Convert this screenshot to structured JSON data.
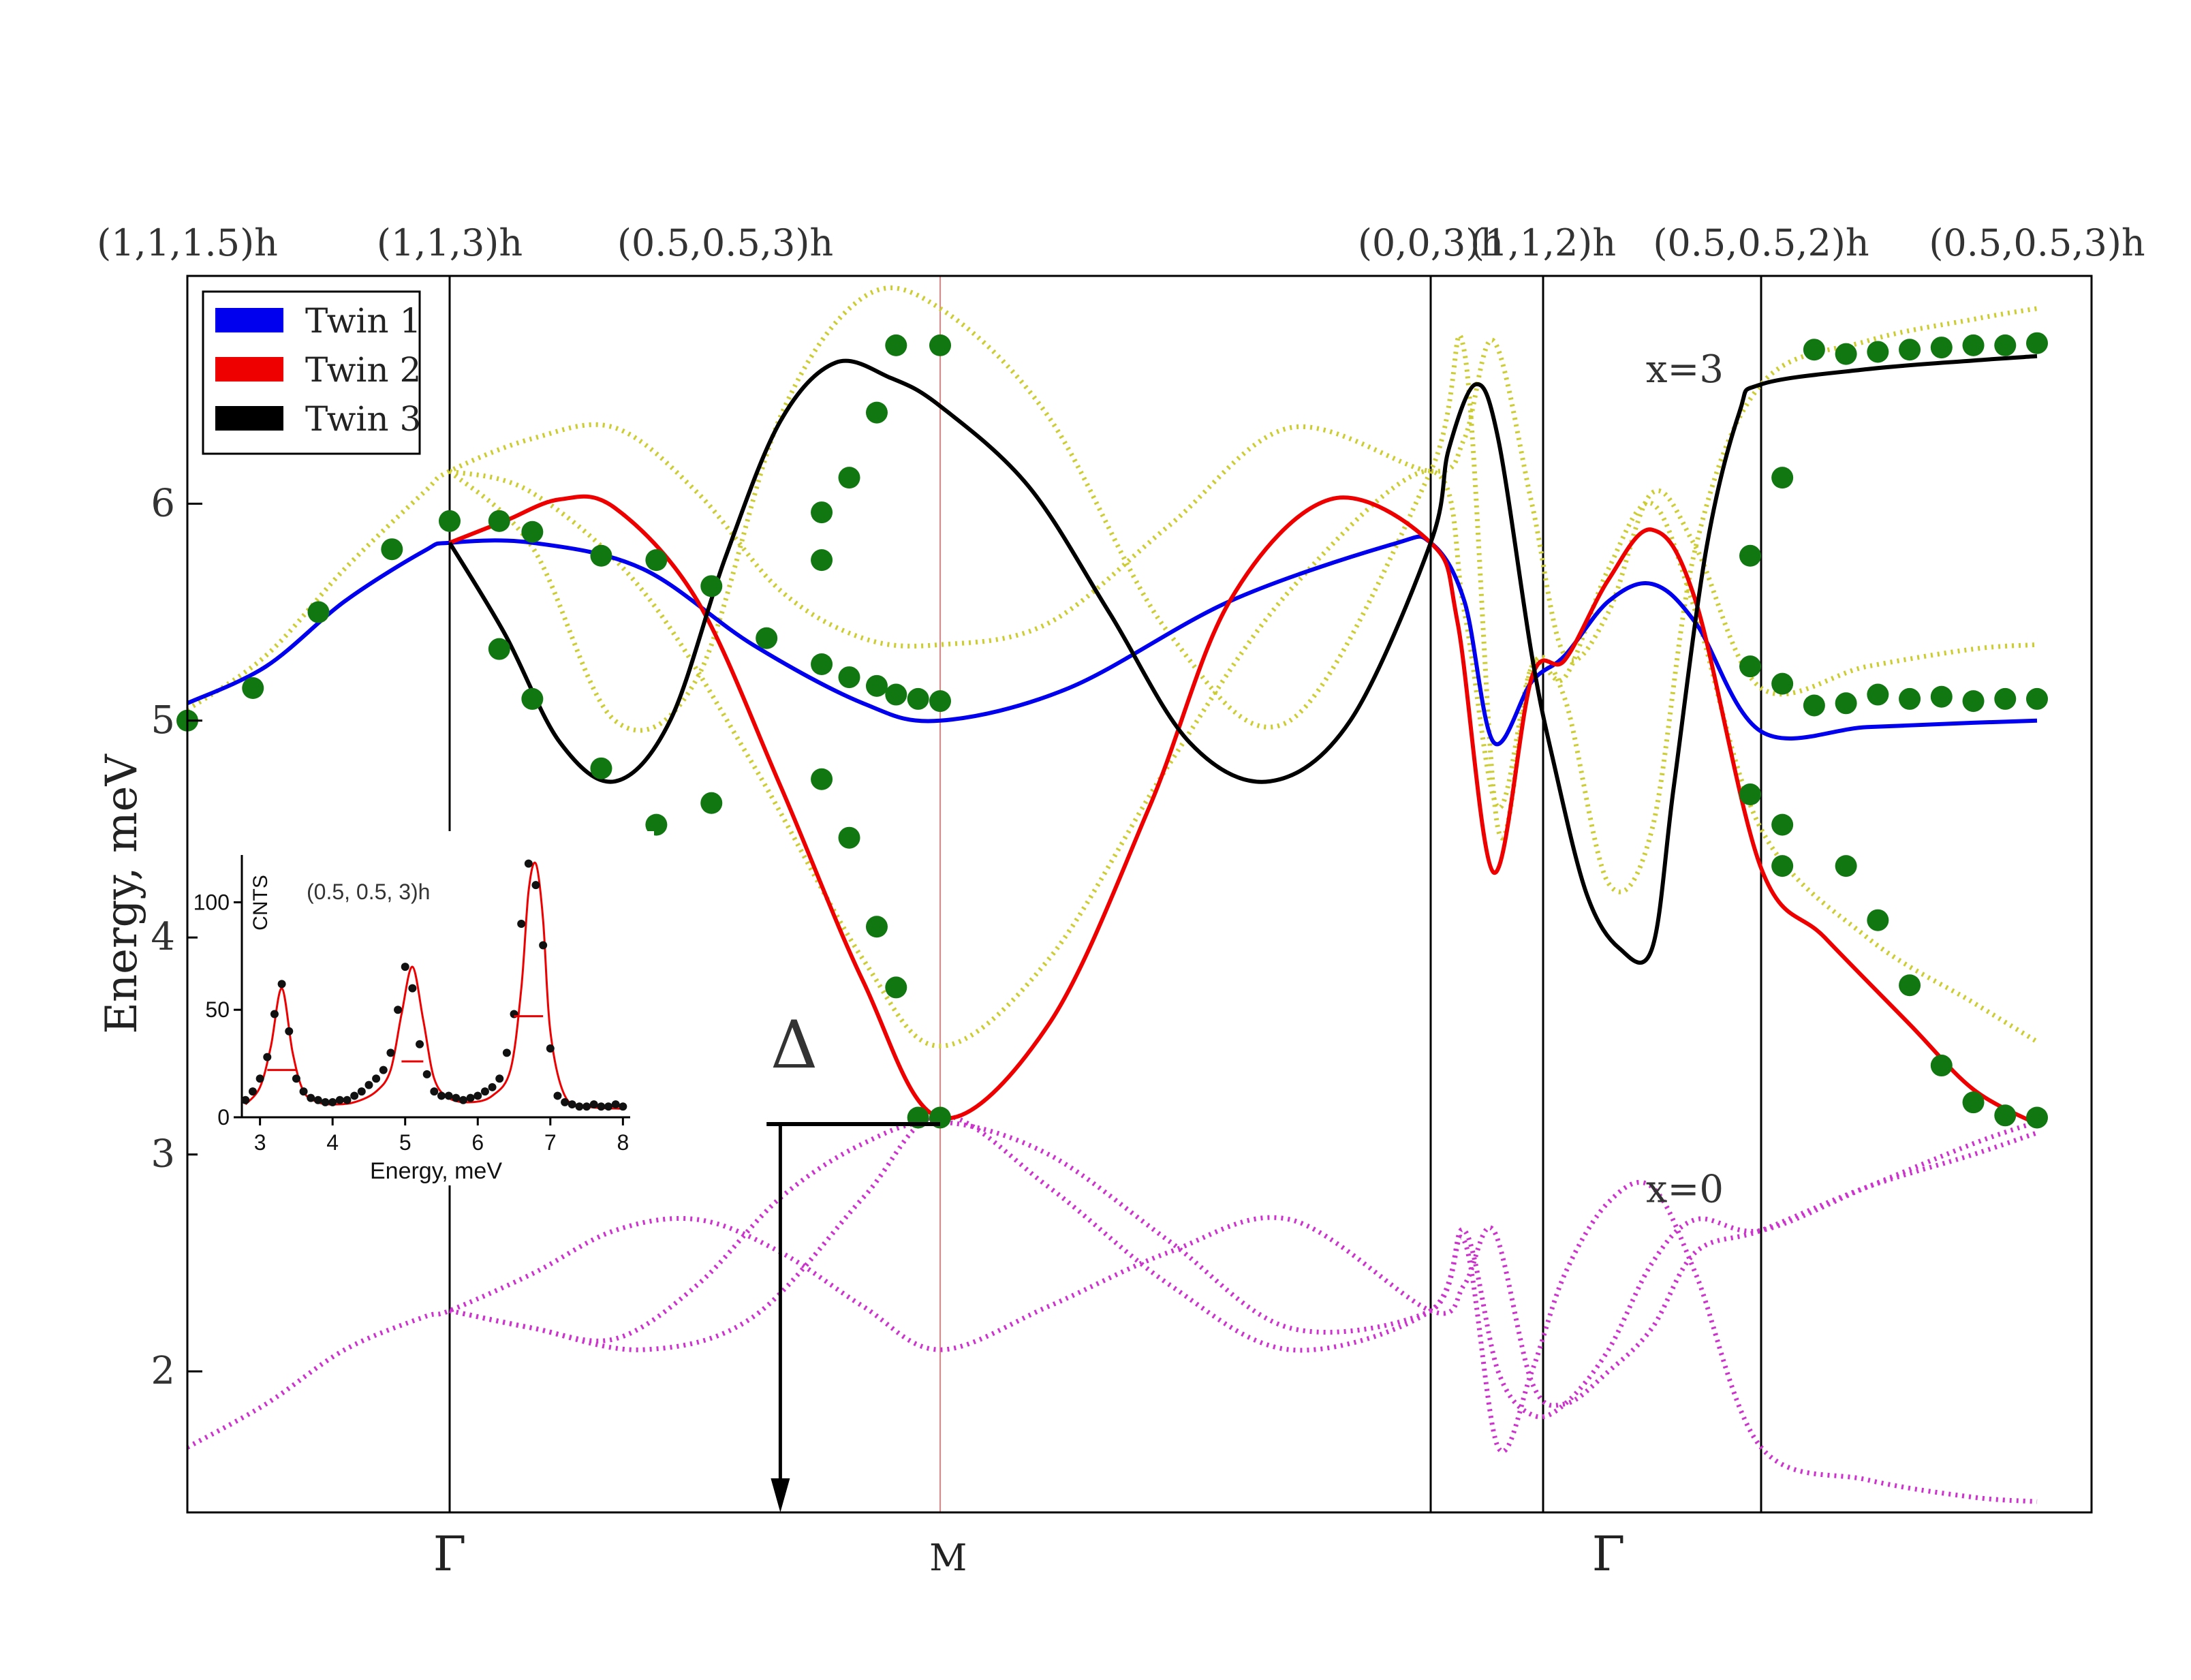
{
  "chart_data": {
    "type": "line",
    "ylabel": "Energy, meV",
    "ylim": [
      1.35,
      7.05
    ],
    "yticks": [
      2,
      3,
      4,
      5,
      6
    ],
    "xlim": [
      0,
      7
    ],
    "top_labels": [
      {
        "x": 0.0,
        "text": "(1,1,1.5)h"
      },
      {
        "x": 1.0,
        "text": "(1,1,3)h"
      },
      {
        "x": 2.0,
        "text": "(0.5,0.5,3)h"
      },
      {
        "x": 4.0,
        "text": "(0,0,3)h"
      },
      {
        "x": 4.5,
        "text": "(1,1,2)h"
      },
      {
        "x": 5.5,
        "text": "(0.5,0.5,2)h"
      },
      {
        "x": 6.8,
        "text": "(0.5,0.5,3)h"
      }
    ],
    "bottom_labels": [
      {
        "x": 1.0,
        "text": "Γ"
      },
      {
        "x": 2.8,
        "text": "M"
      },
      {
        "x": 4.8,
        "text": "Γ"
      }
    ],
    "annotations": [
      {
        "text": "x=3",
        "x": 5.15,
        "y": 6.56
      },
      {
        "text": "x=0",
        "x": 5.15,
        "y": 2.78
      },
      {
        "text": "Δ",
        "x": 2.25,
        "y": 3.4
      }
    ],
    "gap_marker": {
      "x0": 2.15,
      "x1": 2.78,
      "y": 3.14,
      "arrow_x": 2.2,
      "arrow_to": 1.35
    },
    "dividers": [
      1.0,
      4.0,
      4.5,
      5.5
    ],
    "m_line": 2.78,
    "legend": {
      "placement": "top-left",
      "entries": [
        {
          "label": "Twin 1",
          "color": "#0000ee"
        },
        {
          "label": "Twin 2",
          "color": "#ee0000"
        },
        {
          "label": "Twin 3",
          "color": "#000000"
        }
      ]
    },
    "series": [
      {
        "name": "Twin 1",
        "color": "#0000ee",
        "style": "solid",
        "x": [
          0,
          0.3,
          0.6,
          0.9,
          1.0,
          1.3,
          1.7,
          2.1,
          2.5,
          2.78,
          3.1,
          3.5,
          3.9,
          4.0,
          4.15,
          4.28,
          4.45,
          4.6,
          4.8,
          5.0,
          5.2,
          5.5,
          6.0,
          6.5,
          6.8
        ],
        "y": [
          5.08,
          5.25,
          5.55,
          5.78,
          5.82,
          5.82,
          5.7,
          5.35,
          5.08,
          5.0,
          5.15,
          5.55,
          5.81,
          5.82,
          5.55,
          4.9,
          5.18,
          5.3,
          5.55,
          5.63,
          5.45,
          4.95,
          4.97,
          4.99,
          5.0
        ]
      },
      {
        "name": "Twin 2",
        "color": "#ee0000",
        "style": "solid",
        "x": [
          1.0,
          1.2,
          1.4,
          1.6,
          1.9,
          2.2,
          2.5,
          2.78,
          3.05,
          3.3,
          3.5,
          3.75,
          4.0,
          4.12,
          4.28,
          4.45,
          4.6,
          4.8,
          5.0,
          5.2,
          5.5,
          5.8,
          6.2,
          6.5,
          6.8
        ],
        "y": [
          5.82,
          5.92,
          6.02,
          5.98,
          5.55,
          4.7,
          3.8,
          3.17,
          3.6,
          4.6,
          5.55,
          6.02,
          5.82,
          5.45,
          4.3,
          5.2,
          5.28,
          5.65,
          5.88,
          5.55,
          4.32,
          4.0,
          3.6,
          3.3,
          3.14
        ]
      },
      {
        "name": "Twin 3",
        "color": "#000000",
        "style": "solid",
        "x": [
          1.0,
          1.2,
          1.4,
          1.6,
          1.8,
          2.0,
          2.2,
          2.4,
          2.6,
          2.78,
          3.0,
          3.2,
          3.4,
          3.6,
          3.8,
          4.0,
          4.08,
          4.2,
          4.3,
          4.45,
          4.55,
          4.7,
          4.85,
          5.0,
          5.1,
          5.25,
          5.4,
          5.5,
          6.0,
          6.5,
          6.8
        ],
        "y": [
          5.82,
          5.4,
          4.9,
          4.72,
          5.0,
          5.75,
          6.38,
          6.65,
          6.58,
          6.45,
          6.08,
          5.5,
          4.9,
          4.72,
          5.0,
          5.82,
          6.25,
          6.55,
          6.3,
          5.3,
          4.8,
          4.2,
          3.95,
          3.95,
          4.7,
          5.8,
          6.42,
          6.55,
          6.62,
          6.66,
          6.68
        ]
      },
      {
        "name": "",
        "color": "#cccc33",
        "style": "dotted",
        "x": [
          0,
          0.3,
          0.6,
          0.9,
          1.0,
          1.3,
          1.6,
          1.9,
          2.2,
          2.5,
          2.78,
          3.05,
          3.35,
          3.65,
          4.0,
          4.15,
          4.28,
          4.45,
          4.6,
          4.8,
          5.0,
          5.2,
          5.5,
          6.0,
          6.5,
          6.8
        ],
        "y": [
          5.05,
          5.3,
          5.7,
          6.05,
          6.15,
          6.3,
          6.35,
          6.05,
          5.6,
          5.38,
          5.35,
          5.45,
          5.9,
          6.35,
          6.15,
          6.3,
          6.75,
          6.0,
          5.3,
          5.5,
          6.05,
          5.8,
          5.15,
          5.25,
          5.33,
          5.35
        ]
      },
      {
        "name": "",
        "color": "#cccc33",
        "style": "dotted",
        "x": [
          1.0,
          1.3,
          1.6,
          1.9,
          2.2,
          2.5,
          2.78,
          3.05,
          3.35,
          3.65,
          4.0,
          4.15,
          4.3,
          4.45,
          4.6,
          4.8,
          5.0,
          5.2,
          5.5,
          6.0,
          6.5,
          6.8
        ],
        "y": [
          6.15,
          5.8,
          5.0,
          5.2,
          6.4,
          6.95,
          6.9,
          6.4,
          5.4,
          5.0,
          6.15,
          6.7,
          4.5,
          5.25,
          5.1,
          4.25,
          4.5,
          5.8,
          6.55,
          6.75,
          6.85,
          6.9
        ]
      },
      {
        "name": "",
        "color": "#cccc33",
        "style": "dotted",
        "x": [
          1.0,
          1.3,
          1.7,
          2.1,
          2.5,
          2.78,
          3.05,
          3.35,
          3.65,
          4.0,
          4.15,
          4.3,
          4.45,
          4.6,
          4.8,
          5.0,
          5.2,
          5.5,
          6.0,
          6.5,
          6.8
        ],
        "y": [
          6.15,
          6.05,
          5.6,
          4.8,
          3.9,
          3.5,
          3.9,
          4.8,
          5.6,
          6.15,
          5.5,
          4.6,
          5.25,
          5.2,
          5.7,
          6.0,
          5.5,
          4.5,
          4.0,
          3.7,
          3.52
        ]
      },
      {
        "name": "",
        "color": "#cc33cc",
        "style": "dotted",
        "x": [
          0,
          0.3,
          0.6,
          0.9,
          1.0,
          1.3,
          1.6,
          1.9,
          2.2,
          2.5,
          2.78,
          3.05,
          3.35,
          3.65,
          4.0,
          4.15,
          4.28,
          4.45,
          4.6,
          4.8,
          5.0,
          5.2,
          5.5,
          6.0,
          6.5,
          6.8
        ],
        "y": [
          1.65,
          1.85,
          2.1,
          2.25,
          2.28,
          2.45,
          2.65,
          2.7,
          2.55,
          2.3,
          2.1,
          2.3,
          2.55,
          2.7,
          2.28,
          2.4,
          2.65,
          1.95,
          1.85,
          2.0,
          2.2,
          2.55,
          2.65,
          2.85,
          3.0,
          3.1
        ]
      },
      {
        "name": "",
        "color": "#cc33cc",
        "style": "dotted",
        "x": [
          1.0,
          1.3,
          1.6,
          1.9,
          2.2,
          2.5,
          2.78,
          3.05,
          3.35,
          3.65,
          4.0,
          4.15,
          4.3,
          4.45,
          4.6,
          4.8,
          5.0,
          5.2,
          5.5,
          6.0,
          6.5,
          6.8
        ],
        "y": [
          2.28,
          2.2,
          2.15,
          2.4,
          2.8,
          3.05,
          3.15,
          3.0,
          2.6,
          2.2,
          2.28,
          2.6,
          1.65,
          2.0,
          2.45,
          2.78,
          2.85,
          2.45,
          1.65,
          1.5,
          1.42,
          1.4
        ]
      },
      {
        "name": "",
        "color": "#cc33cc",
        "style": "dotted",
        "x": [
          1.0,
          1.3,
          1.7,
          2.1,
          2.5,
          2.78,
          3.05,
          3.35,
          3.65,
          4.0,
          4.15,
          4.3,
          4.45,
          4.6,
          4.8,
          5.0,
          5.2,
          5.5,
          6.0,
          6.5,
          6.8
        ],
        "y": [
          2.28,
          2.2,
          2.1,
          2.25,
          2.8,
          3.18,
          2.85,
          2.4,
          2.1,
          2.28,
          2.65,
          2.0,
          1.8,
          1.85,
          2.1,
          2.5,
          2.7,
          2.65,
          2.85,
          3.05,
          3.15
        ]
      }
    ],
    "points": {
      "name": "",
      "color": "#117711",
      "x": [
        0.0,
        0.25,
        0.5,
        0.78,
        1.0,
        1.18,
        1.3,
        1.55,
        1.75,
        1.95,
        2.15,
        1.18,
        1.3,
        1.55,
        1.75,
        1.95,
        2.35,
        2.35,
        2.45,
        2.55,
        2.62,
        2.7,
        2.35,
        2.45,
        2.55,
        2.62,
        2.7,
        2.78,
        2.35,
        2.45,
        2.55,
        2.62,
        2.78,
        2.78,
        5.45,
        5.45,
        5.45,
        5.6,
        5.6,
        5.6,
        5.6,
        5.75,
        5.75,
        5.9,
        6.05,
        6.2,
        6.35,
        6.5,
        6.65,
        6.8,
        5.9,
        6.05,
        6.2,
        6.35,
        6.5,
        6.65,
        6.8,
        5.9,
        6.05,
        6.2,
        6.35,
        6.5,
        6.65,
        6.8
      ],
      "y": [
        5.0,
        5.15,
        5.5,
        5.79,
        5.92,
        5.92,
        5.87,
        5.76,
        5.74,
        5.62,
        5.38,
        5.33,
        5.1,
        4.78,
        4.52,
        4.62,
        5.74,
        5.26,
        5.2,
        5.16,
        5.12,
        5.1,
        4.73,
        4.46,
        4.05,
        3.77,
        3.17,
        5.09,
        5.96,
        6.12,
        6.42,
        6.73,
        3.17,
        6.73,
        5.76,
        5.25,
        4.66,
        6.12,
        5.17,
        4.52,
        4.33,
        6.71,
        5.07,
        6.69,
        6.7,
        6.71,
        6.72,
        6.73,
        6.73,
        6.74,
        5.08,
        5.12,
        5.1,
        5.11,
        5.09,
        5.1,
        5.1,
        4.33,
        4.08,
        3.78,
        3.41,
        3.24,
        3.18,
        3.17
      ]
    },
    "inset": {
      "type": "line",
      "title": "(0.5, 0.5, 3)h",
      "xlabel": "Energy, meV",
      "ylabel": "CNTS",
      "xlim": [
        2.75,
        8.1
      ],
      "ylim": [
        0,
        122
      ],
      "xticks": [
        3,
        4,
        5,
        6,
        7,
        8
      ],
      "yticks": [
        0,
        50,
        100
      ],
      "fit_color": "#ee0000",
      "fit_x": [
        2.8,
        3.0,
        3.15,
        3.3,
        3.45,
        3.6,
        3.8,
        4.0,
        4.3,
        4.6,
        4.8,
        4.95,
        5.1,
        5.25,
        5.4,
        5.6,
        5.9,
        6.2,
        6.45,
        6.6,
        6.7,
        6.8,
        6.9,
        7.0,
        7.2,
        7.5,
        8.0
      ],
      "fit_y": [
        6,
        14,
        33,
        60,
        30,
        12,
        7,
        6,
        7,
        12,
        22,
        48,
        70,
        45,
        18,
        9,
        7,
        10,
        22,
        60,
        105,
        118,
        92,
        40,
        10,
        5,
        4
      ],
      "data_x": [
        2.8,
        2.9,
        3.0,
        3.1,
        3.2,
        3.3,
        3.4,
        3.5,
        3.6,
        3.7,
        3.8,
        3.9,
        4.0,
        4.1,
        4.2,
        4.3,
        4.4,
        4.5,
        4.6,
        4.7,
        4.8,
        4.9,
        5.0,
        5.1,
        5.2,
        5.3,
        5.4,
        5.5,
        5.6,
        5.7,
        5.8,
        5.9,
        6.0,
        6.1,
        6.2,
        6.3,
        6.4,
        6.5,
        6.6,
        6.7,
        6.8,
        6.9,
        7.0,
        7.1,
        7.2,
        7.3,
        7.4,
        7.5,
        7.6,
        7.7,
        7.8,
        7.9,
        8.0
      ],
      "data_y": [
        8,
        12,
        18,
        28,
        48,
        62,
        40,
        18,
        12,
        9,
        8,
        7,
        7,
        8,
        8,
        10,
        12,
        15,
        18,
        22,
        30,
        50,
        70,
        60,
        34,
        20,
        12,
        10,
        10,
        9,
        8,
        9,
        10,
        12,
        14,
        18,
        30,
        48,
        90,
        118,
        108,
        80,
        32,
        10,
        7,
        6,
        5,
        5,
        6,
        5,
        5,
        6,
        5
      ],
      "widths": [
        {
          "x0": 3.1,
          "x1": 3.5,
          "y": 22
        },
        {
          "x0": 4.95,
          "x1": 5.25,
          "y": 26
        },
        {
          "x0": 6.5,
          "x1": 6.9,
          "y": 47
        }
      ]
    }
  }
}
